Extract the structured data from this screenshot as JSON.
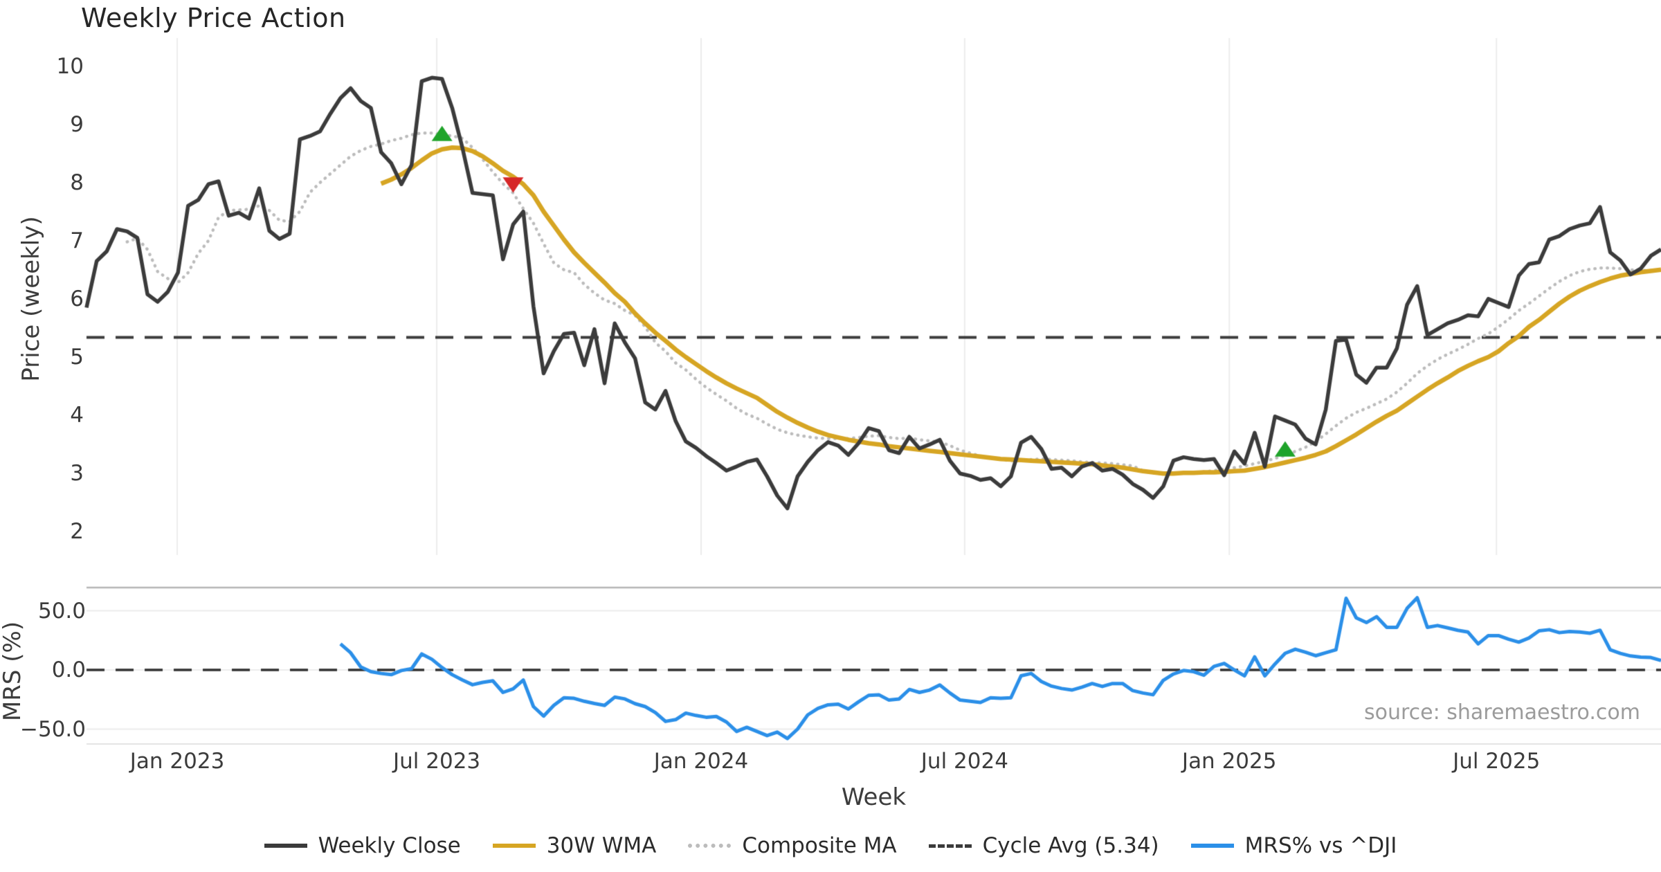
{
  "title": "Weekly Price Action",
  "source_note": "source: sharemaestro.com",
  "colors": {
    "close": "#3b3b3b",
    "wma": "#d6a523",
    "composite": "#bcbcbc",
    "cycle": "#3b3b3b",
    "mrs": "#2b8fe8",
    "buy_marker": "#1fa32a",
    "sell_marker": "#d62728",
    "grid": "#ececec",
    "spine": "#b5b5b5",
    "panel_edge": "#d8d8d8"
  },
  "x_axis": {
    "label": "Week",
    "ticks": [
      {
        "label": "Jan 2023",
        "week": 8.93
      },
      {
        "label": "Jul 2023",
        "week": 34.48
      },
      {
        "label": "Jan 2024",
        "week": 60.5
      },
      {
        "label": "Jul 2024",
        "week": 86.45
      },
      {
        "label": "Jan 2025",
        "week": 112.5
      },
      {
        "label": "Jul 2025",
        "week": 138.8
      }
    ]
  },
  "panels": {
    "price": {
      "ylabel": "Price (weekly)",
      "yticks": [
        10,
        9,
        8,
        7,
        6,
        5,
        4,
        3,
        2
      ],
      "ylim": [
        1.7,
        10.5
      ]
    },
    "mrs": {
      "ylabel": "MRS (%)",
      "ytick_labels": [
        "50.0",
        "0.0",
        "−50.0"
      ],
      "ytick_values": [
        50,
        0,
        -50
      ],
      "ylim": [
        -63,
        70
      ]
    }
  },
  "legend": {
    "items": [
      {
        "label": "Weekly Close",
        "style": "solid",
        "color_key": "close"
      },
      {
        "label": "30W WMA",
        "style": "solid",
        "color_key": "wma"
      },
      {
        "label": "Composite MA",
        "style": "dotted",
        "color_key": "composite"
      },
      {
        "label": "Cycle Avg (5.34)",
        "style": "dashed",
        "color_key": "cycle"
      },
      {
        "label": "MRS% vs ^DJI",
        "style": "solid",
        "color_key": "mrs"
      }
    ]
  },
  "chart_data": {
    "type": "line",
    "title": "Weekly Price Action",
    "xlabel": "Week",
    "x_unit": "week_index",
    "weeks_total": 156,
    "grid": "vertical-on-price-panel, horizontal-on-mrs-panel",
    "legend_position": "bottom-center",
    "panels": [
      {
        "id": "price",
        "ylabel": "Price (weekly)",
        "ylim": [
          1.7,
          10.5
        ],
        "series": [
          {
            "name": "Weekly Close",
            "start_week": 0,
            "values": [
              5.85,
              6.65,
              6.82,
              7.2,
              7.16,
              7.05,
              6.08,
              5.95,
              6.12,
              6.45,
              7.6,
              7.7,
              7.97,
              8.02,
              7.43,
              7.48,
              7.38,
              7.9,
              7.17,
              7.03,
              7.12,
              8.74,
              8.8,
              8.88,
              9.18,
              9.45,
              9.62,
              9.4,
              9.28,
              8.52,
              8.33,
              7.97,
              8.3,
              9.74,
              9.8,
              9.78,
              9.28,
              8.6,
              7.82,
              7.8,
              7.78,
              6.68,
              7.28,
              7.5,
              5.87,
              4.72,
              5.1,
              5.4,
              5.42,
              4.86,
              5.48,
              4.55,
              5.58,
              5.25,
              4.98,
              4.22,
              4.1,
              4.42,
              3.9,
              3.55,
              3.44,
              3.3,
              3.18,
              3.05,
              3.12,
              3.2,
              3.24,
              2.95,
              2.62,
              2.4,
              2.95,
              3.2,
              3.4,
              3.54,
              3.48,
              3.32,
              3.52,
              3.78,
              3.73,
              3.4,
              3.35,
              3.63,
              3.43,
              3.5,
              3.58,
              3.22,
              3.0,
              2.96,
              2.89,
              2.92,
              2.78,
              2.95,
              3.53,
              3.63,
              3.42,
              3.08,
              3.1,
              2.95,
              3.12,
              3.18,
              3.05,
              3.08,
              2.98,
              2.82,
              2.72,
              2.58,
              2.78,
              3.22,
              3.28,
              3.25,
              3.23,
              3.25,
              2.97,
              3.38,
              3.17,
              3.7,
              3.12,
              3.98,
              3.91,
              3.84,
              3.6,
              3.5,
              4.1,
              5.28,
              5.3,
              4.7,
              4.56,
              4.82,
              4.82,
              5.15,
              5.9,
              6.22,
              5.38,
              5.48,
              5.58,
              5.64,
              5.72,
              5.7,
              6.0,
              5.93,
              5.86,
              6.4,
              6.6,
              6.63,
              7.02,
              7.08,
              7.2,
              7.26,
              7.3,
              7.58,
              6.8,
              6.66,
              6.42,
              6.52,
              6.74,
              6.85
            ]
          },
          {
            "name": "30W WMA",
            "start_week": 29,
            "values": [
              7.98,
              8.05,
              8.14,
              8.25,
              8.38,
              8.5,
              8.57,
              8.6,
              8.59,
              8.54,
              8.45,
              8.33,
              8.2,
              8.1,
              7.97,
              7.78,
              7.5,
              7.26,
              7.02,
              6.8,
              6.62,
              6.45,
              6.28,
              6.1,
              5.95,
              5.75,
              5.58,
              5.42,
              5.28,
              5.13,
              5.0,
              4.88,
              4.76,
              4.65,
              4.55,
              4.46,
              4.38,
              4.3,
              4.18,
              4.06,
              3.96,
              3.87,
              3.79,
              3.72,
              3.66,
              3.62,
              3.58,
              3.55,
              3.52,
              3.5,
              3.47,
              3.45,
              3.43,
              3.41,
              3.39,
              3.37,
              3.35,
              3.33,
              3.31,
              3.29,
              3.27,
              3.25,
              3.24,
              3.23,
              3.22,
              3.21,
              3.2,
              3.19,
              3.18,
              3.17,
              3.16,
              3.14,
              3.12,
              3.1,
              3.07,
              3.04,
              3.02,
              3.0,
              3.0,
              3.01,
              3.01,
              3.02,
              3.02,
              3.03,
              3.04,
              3.05,
              3.08,
              3.11,
              3.15,
              3.19,
              3.23,
              3.27,
              3.32,
              3.38,
              3.47,
              3.57,
              3.67,
              3.78,
              3.89,
              3.99,
              4.08,
              4.2,
              4.32,
              4.44,
              4.55,
              4.65,
              4.76,
              4.85,
              4.93,
              5.0,
              5.1,
              5.24,
              5.36,
              5.52,
              5.64,
              5.78,
              5.92,
              6.04,
              6.14,
              6.22,
              6.29,
              6.35,
              6.4,
              6.43,
              6.46,
              6.48,
              6.5
            ]
          },
          {
            "name": "Composite MA",
            "start_week": 4,
            "values": [
              6.98,
              7.04,
              6.85,
              6.47,
              6.35,
              6.28,
              6.45,
              6.78,
              7.0,
              7.4,
              7.52,
              7.53,
              7.54,
              7.6,
              7.52,
              7.35,
              7.33,
              7.5,
              7.83,
              8.0,
              8.15,
              8.3,
              8.45,
              8.55,
              8.62,
              8.66,
              8.72,
              8.76,
              8.82,
              8.85,
              8.85,
              8.82,
              8.8,
              8.76,
              8.6,
              8.4,
              8.18,
              7.98,
              7.82,
              7.55,
              7.3,
              6.95,
              6.62,
              6.5,
              6.45,
              6.25,
              6.1,
              5.98,
              5.92,
              5.8,
              5.72,
              5.52,
              5.25,
              5.1,
              4.9,
              4.78,
              4.62,
              4.48,
              4.36,
              4.25,
              4.12,
              4.02,
              3.95,
              3.85,
              3.76,
              3.7,
              3.66,
              3.63,
              3.61,
              3.6,
              3.6,
              3.6,
              3.62,
              3.64,
              3.65,
              3.62,
              3.6,
              3.61,
              3.58,
              3.56,
              3.54,
              3.48,
              3.4,
              3.35,
              3.3,
              3.27,
              3.24,
              3.22,
              3.22,
              3.24,
              3.25,
              3.24,
              3.23,
              3.22,
              3.2,
              3.19,
              3.18,
              3.17,
              3.15,
              3.13,
              3.05,
              3.01,
              2.99,
              3.0,
              3.01,
              3.02,
              3.03,
              3.05,
              3.08,
              3.1,
              3.13,
              3.17,
              3.21,
              3.26,
              3.31,
              3.38,
              3.45,
              3.55,
              3.68,
              3.82,
              3.95,
              4.05,
              4.12,
              4.2,
              4.28,
              4.4,
              4.55,
              4.72,
              4.85,
              4.96,
              5.05,
              5.13,
              5.22,
              5.32,
              5.4,
              5.52,
              5.65,
              5.8,
              5.92,
              6.05,
              6.18,
              6.3,
              6.4,
              6.47,
              6.51,
              6.53,
              6.53,
              6.52,
              6.5,
              6.49,
              6.49,
              6.5
            ]
          },
          {
            "name": "Cycle Avg (5.34)",
            "type": "hline",
            "value": 5.34
          }
        ],
        "markers": [
          {
            "signal": "buy",
            "week": 35,
            "value": 8.82
          },
          {
            "signal": "sell",
            "week": 42,
            "value": 7.98
          },
          {
            "signal": "buy",
            "week": 118,
            "value": 3.4
          }
        ]
      },
      {
        "id": "mrs",
        "ylabel": "MRS (%)",
        "ylim": [
          -63,
          70
        ],
        "series": [
          {
            "name": "MRS% vs ^DJI",
            "start_week": 25,
            "values": [
              22,
              14.5,
              2.5,
              -1.5,
              -3,
              -4,
              -0.5,
              1,
              13.5,
              9,
              2,
              -4,
              -8.5,
              -12.5,
              -10.5,
              -9.2,
              -19,
              -16,
              -8.5,
              -31,
              -39,
              -30,
              -23.5,
              -24,
              -26.5,
              -28.4,
              -30,
              -23,
              -24.5,
              -28.5,
              -31,
              -36,
              -43.5,
              -42,
              -36.5,
              -38.5,
              -40,
              -39.3,
              -44,
              -52,
              -48.5,
              -52,
              -55.5,
              -52.5,
              -58,
              -50,
              -38,
              -32.5,
              -29.5,
              -29,
              -33,
              -27,
              -21.5,
              -21,
              -25.5,
              -24.5,
              -16.5,
              -19,
              -17,
              -12.7,
              -19.5,
              -25.5,
              -26.5,
              -27.5,
              -23.5,
              -24,
              -23.5,
              -5,
              -3,
              -9.8,
              -13.7,
              -15.7,
              -17,
              -14.5,
              -11.5,
              -14,
              -11.5,
              -11.5,
              -17.5,
              -19.5,
              -21,
              -8.8,
              -3.5,
              -0.5,
              -1.5,
              -4.5,
              3,
              5.5,
              0,
              -5,
              11,
              -5,
              5,
              14,
              17.5,
              15,
              12,
              14.5,
              17,
              60.5,
              44,
              40,
              45,
              36,
              36,
              52,
              61,
              36,
              37.5,
              35.5,
              33.5,
              32,
              22,
              29,
              29,
              26,
              23.5,
              27,
              33,
              34,
              31.5,
              32.5,
              32,
              31,
              33.5,
              17,
              14,
              11.8,
              10.8,
              10.5,
              8
            ]
          },
          {
            "name": "zero-line",
            "type": "hline",
            "value": 0
          }
        ]
      }
    ]
  }
}
